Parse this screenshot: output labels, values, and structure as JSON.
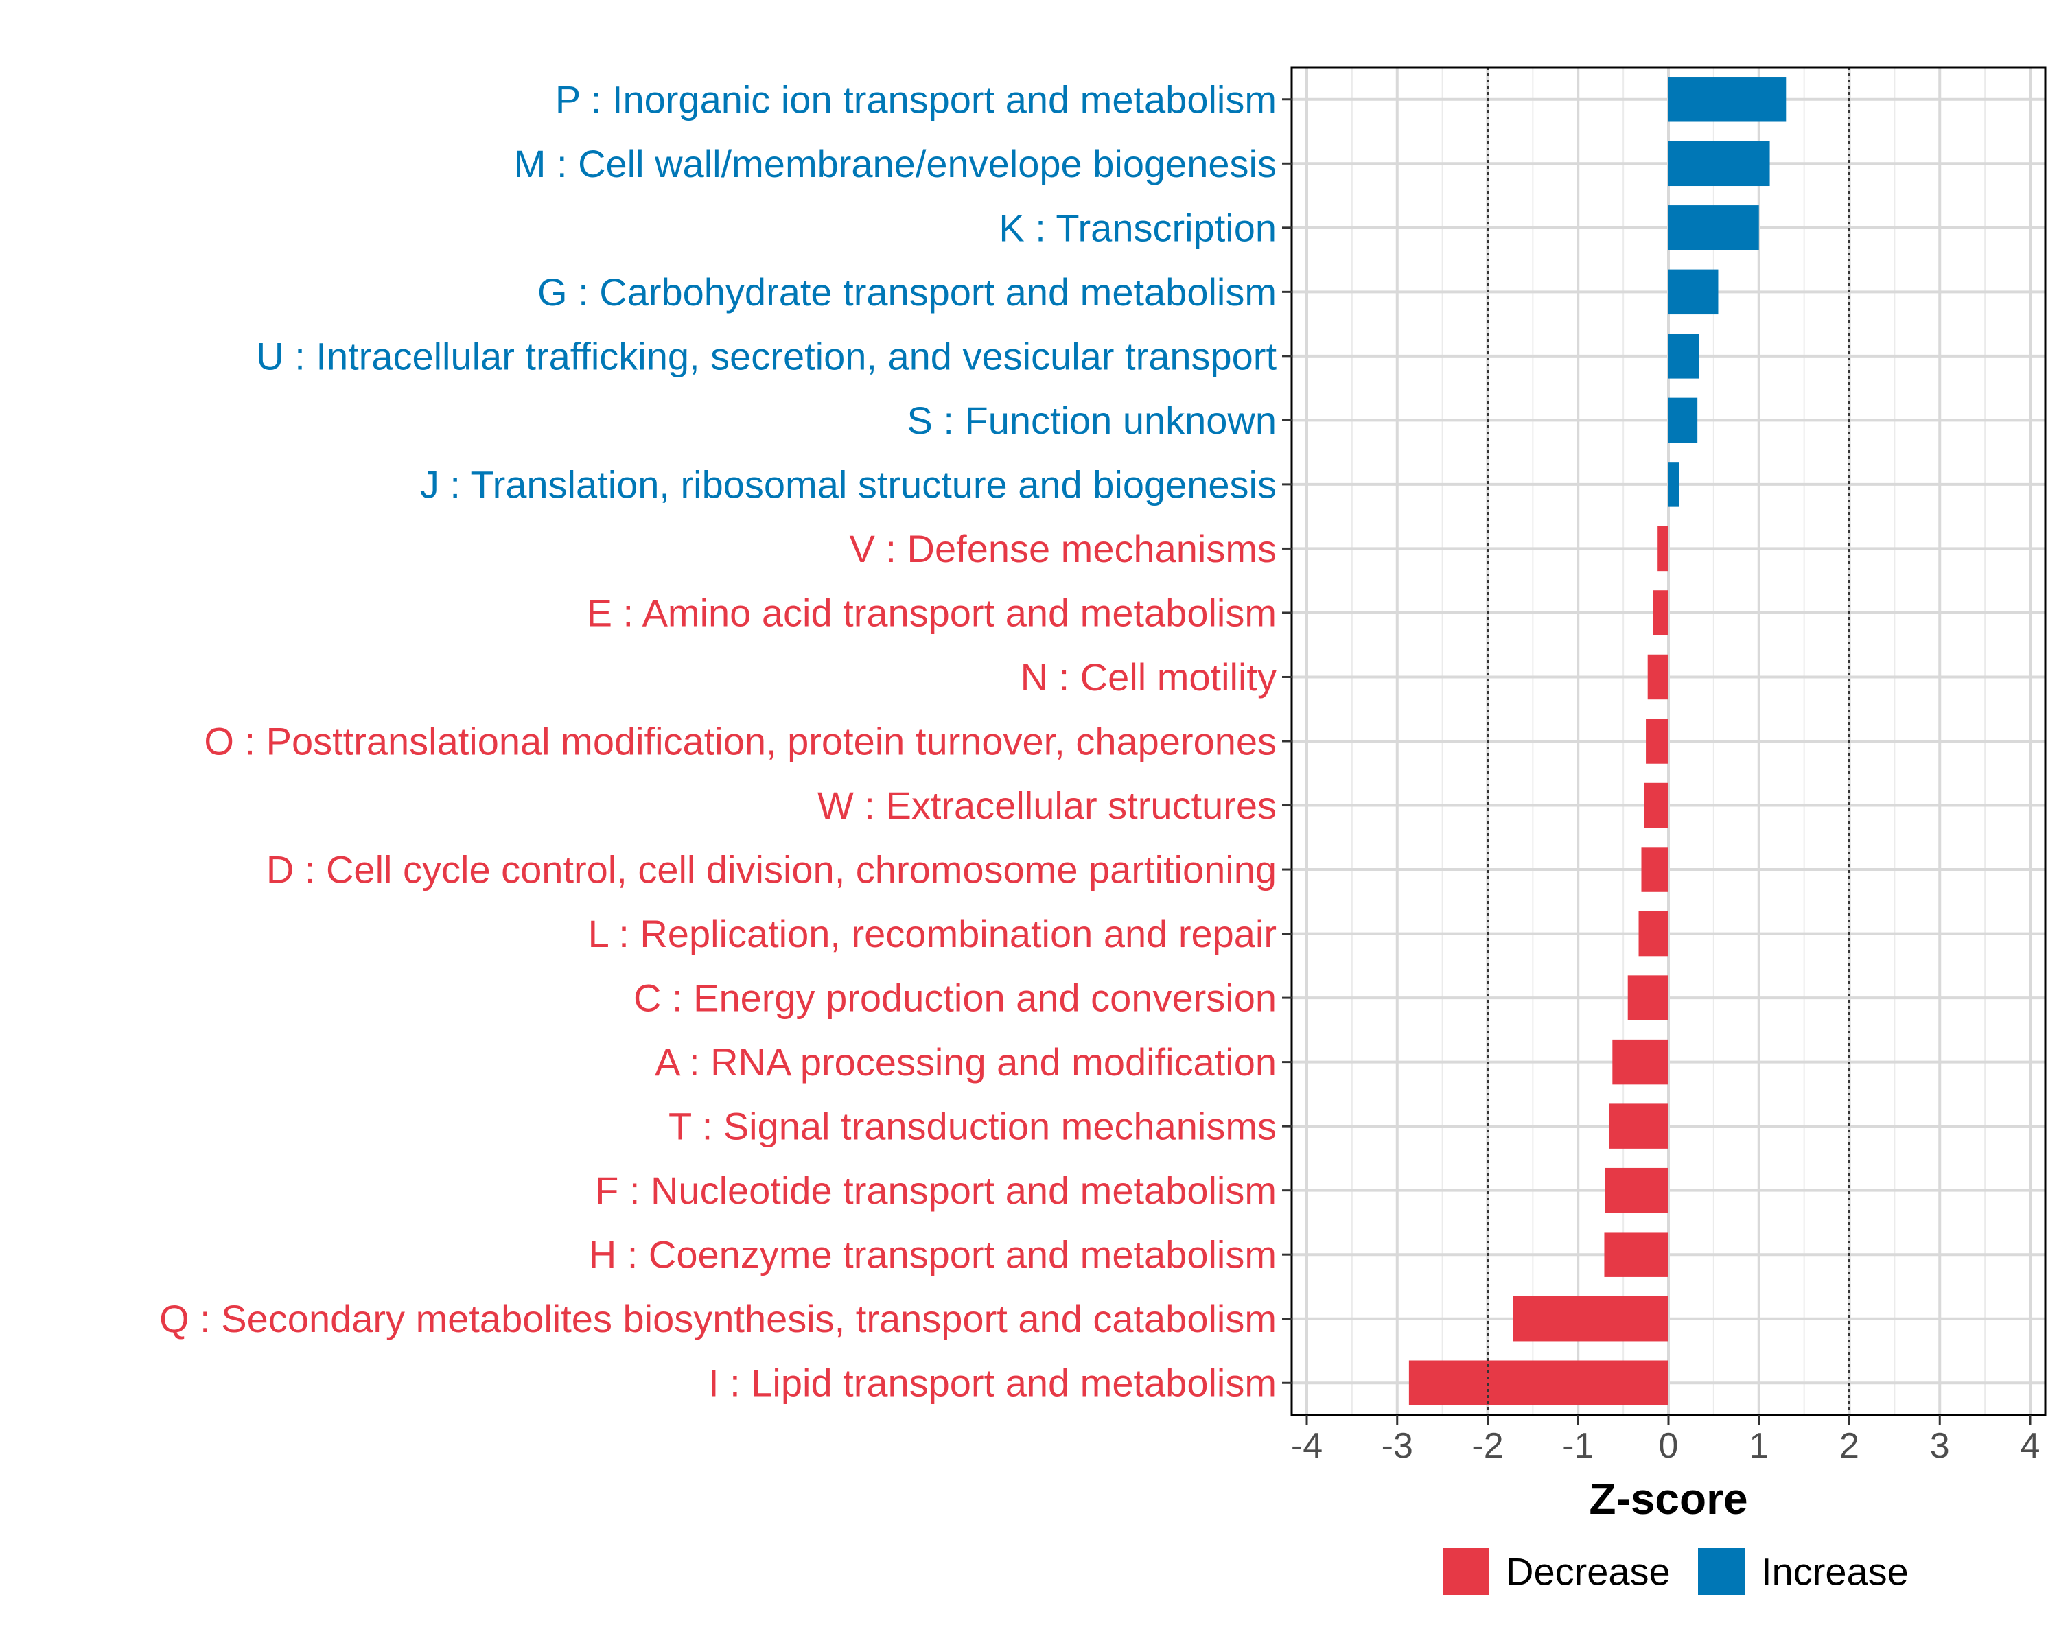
{
  "chart_data": {
    "type": "bar",
    "orientation": "horizontal",
    "xlabel": "Z-score",
    "ylabel": "",
    "xlim": [
      -4,
      4
    ],
    "xticks": [
      "-4",
      "-3",
      "-2",
      "-1",
      "0",
      "1",
      "2",
      "3",
      "4"
    ],
    "reference_lines": [
      -2,
      2
    ],
    "grid": true,
    "legend_position": "bottom",
    "legend": [
      {
        "name": "Decrease",
        "color": "#e63946"
      },
      {
        "name": "Increase",
        "color": "#0077b6"
      }
    ],
    "categories": [
      "P : Inorganic ion transport and metabolism",
      "M : Cell wall/membrane/envelope biogenesis",
      "K : Transcription",
      "G : Carbohydrate transport and metabolism",
      "U : Intracellular trafficking, secretion, and vesicular transport",
      "S : Function unknown",
      "J : Translation, ribosomal structure and biogenesis",
      "V : Defense mechanisms",
      "E : Amino acid transport and metabolism",
      "N : Cell motility",
      "O : Posttranslational modification, protein turnover, chaperones",
      "W : Extracellular structures",
      "D : Cell cycle control, cell division, chromosome partitioning",
      "L : Replication, recombination and repair",
      "C : Energy production and conversion",
      "A : RNA processing and modification",
      "T : Signal transduction mechanisms",
      "F : Nucleotide transport and metabolism",
      "H : Coenzyme transport and metabolism",
      "Q : Secondary metabolites biosynthesis, transport and catabolism",
      "I : Lipid transport and metabolism"
    ],
    "values": [
      1.3,
      1.12,
      1.0,
      0.55,
      0.34,
      0.32,
      0.12,
      -0.12,
      -0.17,
      -0.23,
      -0.25,
      -0.27,
      -0.3,
      -0.33,
      -0.45,
      -0.62,
      -0.66,
      -0.7,
      -0.71,
      -1.72,
      -2.87
    ]
  }
}
